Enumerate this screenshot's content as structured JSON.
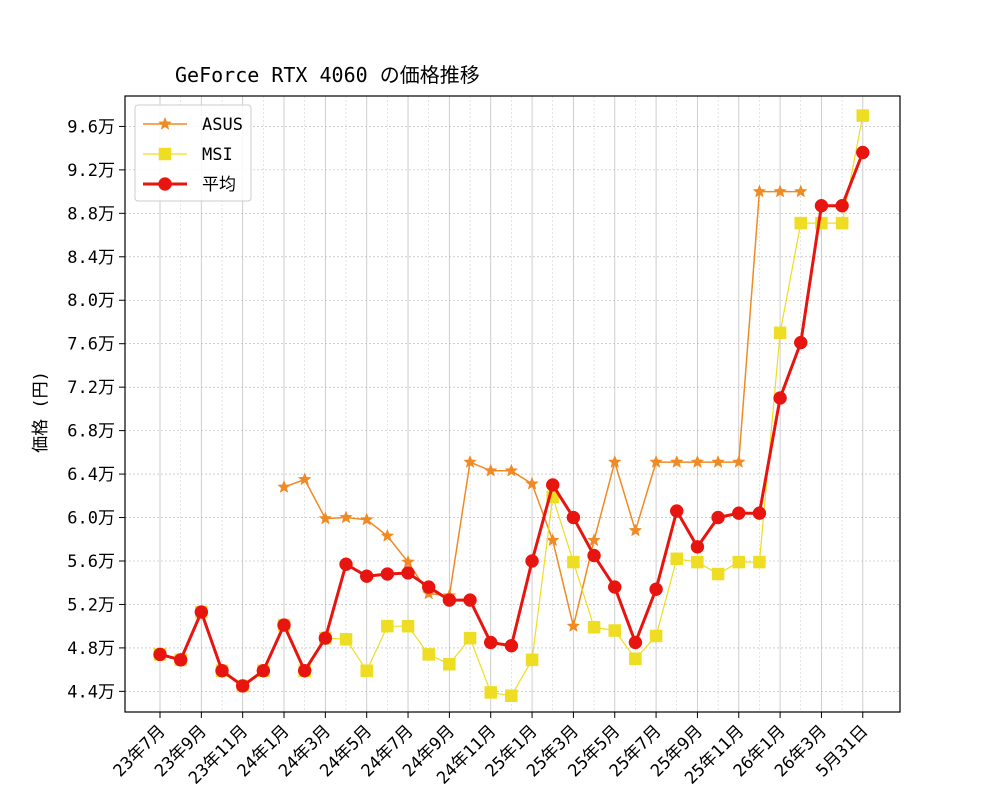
{
  "chart_data": {
    "type": "line",
    "title": "GeForce RTX 4060 の価格推移",
    "xlabel": "",
    "ylabel": "価格 (円)",
    "ylim": [
      42100,
      98800
    ],
    "grid": true,
    "legend_position": "top-left",
    "x_tick_labels": [
      "23年7月",
      "23年9月",
      "23年11月",
      "24年1月",
      "24年3月",
      "24年5月",
      "24年7月",
      "24年9月",
      "24年11月",
      "25年1月",
      "25年3月",
      "25年5月",
      "25年7月",
      "25年9月",
      "25年11月",
      "26年1月",
      "26年3月",
      "5月31日"
    ],
    "y_ticks": [
      44000,
      48000,
      52000,
      56000,
      60000,
      64000,
      68000,
      72000,
      76000,
      80000,
      84000,
      88000,
      92000,
      96000
    ],
    "y_tick_labels": [
      "4.4万",
      "4.8万",
      "5.2万",
      "5.6万",
      "6.0万",
      "6.4万",
      "6.8万",
      "7.2万",
      "7.6万",
      "8.0万",
      "8.4万",
      "8.8万",
      "9.2万",
      "9.6万"
    ],
    "series": [
      {
        "name": "ASUS",
        "color": "#f08a24",
        "marker": "star",
        "points": [
          [
            6,
            62800
          ],
          [
            7,
            63500
          ],
          [
            8,
            59900
          ],
          [
            9,
            60000
          ],
          [
            10,
            59800
          ],
          [
            11,
            58300
          ],
          [
            12,
            55900
          ],
          [
            13,
            53000
          ],
          [
            14,
            52800
          ],
          [
            15,
            65100
          ],
          [
            16,
            64300
          ],
          [
            17,
            64300
          ],
          [
            18,
            63100
          ],
          [
            19,
            57900
          ],
          [
            20,
            50000
          ],
          [
            21,
            57900
          ],
          [
            22,
            65100
          ],
          [
            23,
            58800
          ],
          [
            24,
            65100
          ],
          [
            25,
            65100
          ],
          [
            26,
            65100
          ],
          [
            27,
            65100
          ],
          [
            28,
            65100
          ],
          [
            29,
            90000
          ],
          [
            30,
            90000
          ],
          [
            31,
            90000
          ]
        ]
      },
      {
        "name": "MSI",
        "color": "#eedd22",
        "marker": "square",
        "points": [
          [
            0,
            47400
          ],
          [
            1,
            46900
          ],
          [
            2,
            51300
          ],
          [
            3,
            45900
          ],
          [
            4,
            44500
          ],
          [
            5,
            45900
          ],
          [
            6,
            50100
          ],
          [
            7,
            45900
          ],
          [
            8,
            48900
          ],
          [
            9,
            48800
          ],
          [
            10,
            45900
          ],
          [
            11,
            50000
          ],
          [
            12,
            50000
          ],
          [
            13,
            47400
          ],
          [
            14,
            46500
          ],
          [
            15,
            48900
          ],
          [
            16,
            43900
          ],
          [
            17,
            43600
          ],
          [
            18,
            46900
          ],
          [
            19,
            61900
          ],
          [
            20,
            55900
          ],
          [
            21,
            49900
          ],
          [
            22,
            49600
          ],
          [
            23,
            47000
          ],
          [
            24,
            49100
          ],
          [
            25,
            56200
          ],
          [
            26,
            55900
          ],
          [
            27,
            54800
          ],
          [
            28,
            55900
          ],
          [
            29,
            55900
          ],
          [
            30,
            77000
          ],
          [
            31,
            87100
          ],
          [
            32,
            87100
          ],
          [
            33,
            87100
          ],
          [
            34,
            97000
          ]
        ]
      },
      {
        "name": "平均",
        "color": "#e8140f",
        "marker": "circle",
        "points": [
          [
            0,
            47400
          ],
          [
            1,
            46900
          ],
          [
            2,
            51300
          ],
          [
            3,
            45900
          ],
          [
            4,
            44500
          ],
          [
            5,
            45900
          ],
          [
            6,
            50100
          ],
          [
            7,
            45900
          ],
          [
            8,
            48900
          ],
          [
            9,
            55700
          ],
          [
            10,
            54600
          ],
          [
            11,
            54800
          ],
          [
            12,
            54900
          ],
          [
            13,
            53600
          ],
          [
            14,
            52400
          ],
          [
            15,
            52400
          ],
          [
            16,
            48500
          ],
          [
            17,
            48200
          ],
          [
            18,
            56000
          ],
          [
            19,
            63000
          ],
          [
            20,
            60000
          ],
          [
            21,
            56500
          ],
          [
            22,
            53600
          ],
          [
            23,
            48500
          ],
          [
            24,
            53400
          ],
          [
            25,
            60600
          ],
          [
            26,
            57300
          ],
          [
            27,
            60000
          ],
          [
            28,
            60400
          ],
          [
            29,
            60400
          ],
          [
            30,
            71000
          ],
          [
            31,
            76100
          ],
          [
            32,
            88700
          ],
          [
            33,
            88700
          ],
          [
            34,
            93600
          ]
        ]
      }
    ]
  }
}
